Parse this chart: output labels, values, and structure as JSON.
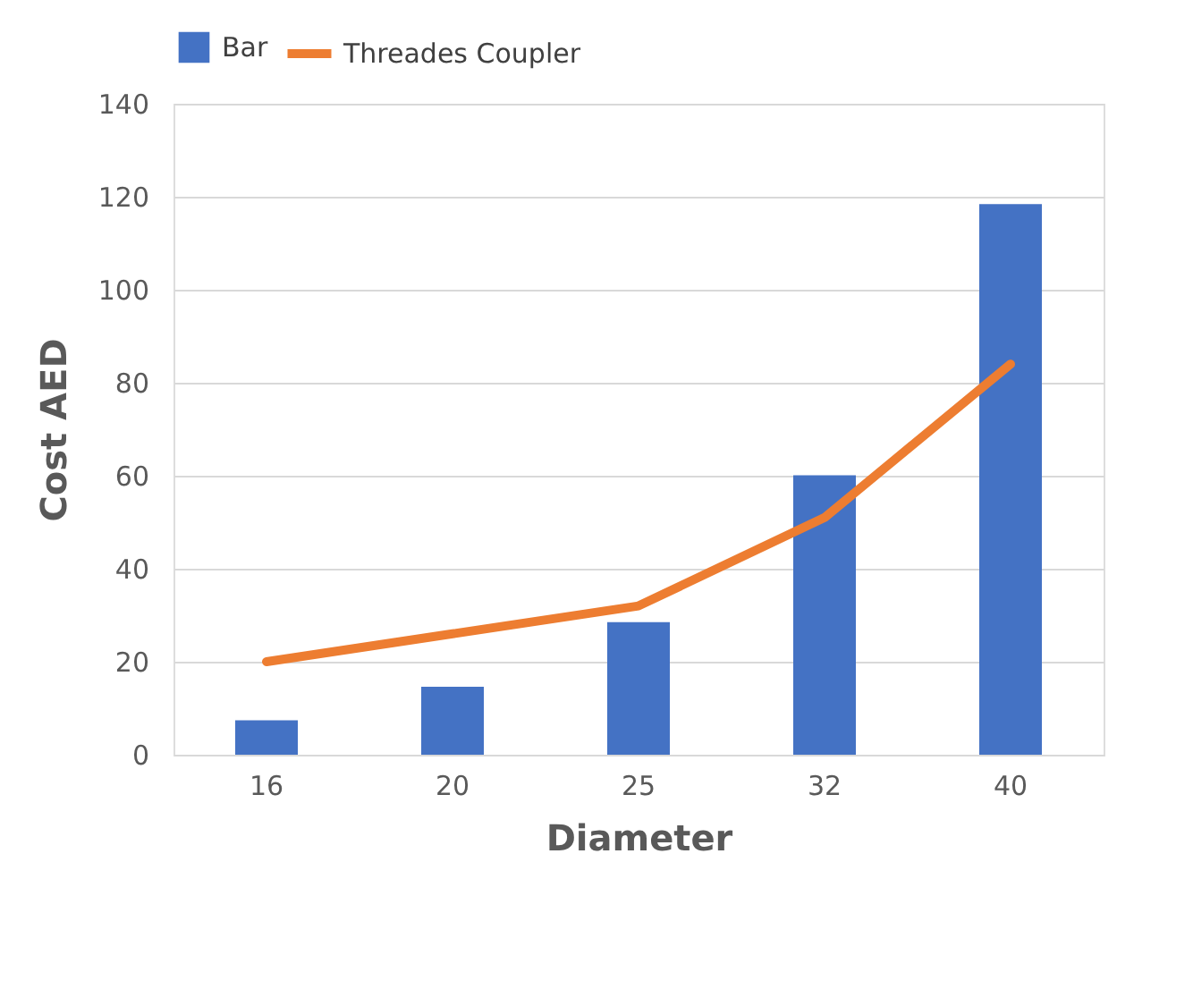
{
  "chart_data": {
    "type": "bar",
    "categories": [
      "16",
      "20",
      "25",
      "32",
      "40"
    ],
    "xlabel": "Diameter",
    "ylabel": "Cost   AED",
    "series": [
      {
        "name": "Bar",
        "color": "#4472c4",
        "values": [
          7.4,
          14.6,
          28.5,
          60.1,
          118.4
        ]
      },
      {
        "name": "Threades  Coupler",
        "type": "line",
        "color": "#ed7d31",
        "values": [
          20,
          26,
          32,
          51,
          84
        ]
      }
    ],
    "ylim": [
      0,
      140
    ],
    "yticks": [
      0,
      20,
      40,
      60,
      80,
      100,
      120,
      140
    ],
    "grid": "y",
    "legend": "top left",
    "line_style": "solid",
    "marker": "none"
  }
}
